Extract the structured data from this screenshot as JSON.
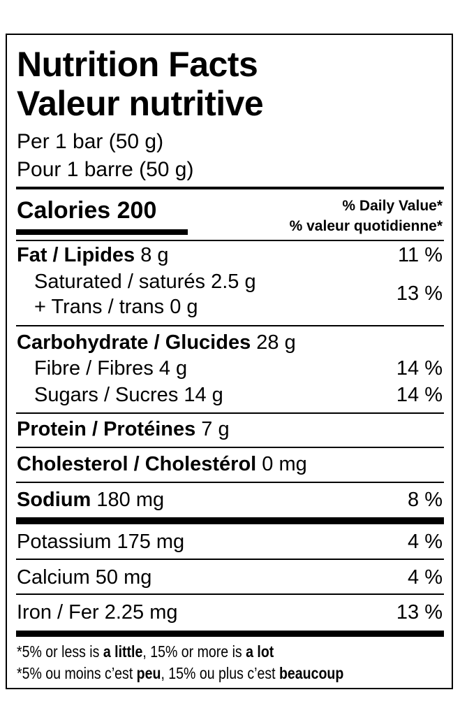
{
  "title": [
    "Nutrition Facts",
    "Valeur nutritive"
  ],
  "serving": [
    "Per 1 bar (50 g)",
    "Pour 1 barre (50 g)"
  ],
  "calories": "Calories 200",
  "daily_value_header": [
    "% Daily Value*",
    "% valeur quotidienne*"
  ],
  "fat": {
    "name": "Fat / Lipides",
    "amount": "8 g",
    "dv": "11 %"
  },
  "saturated": {
    "name": "Saturated / saturés 2.5 g",
    "trans": "+ Trans / trans 0 g",
    "dv": "13 %"
  },
  "carbohydrate": {
    "name": "Carbohydrate / Glucides",
    "amount": "28 g"
  },
  "fibre": {
    "name": "Fibre / Fibres 4 g",
    "dv": "14 %"
  },
  "sugars": {
    "name": "Sugars / Sucres 14 g",
    "dv": "14 %"
  },
  "protein": {
    "name": "Protein / Protéines",
    "amount": "7 g"
  },
  "cholesterol": {
    "name": "Cholesterol / Cholestérol",
    "amount": "0 mg"
  },
  "sodium": {
    "name": "Sodium",
    "amount": "180 mg",
    "dv": "8 %"
  },
  "potassium": {
    "name": "Potassium 175 mg",
    "dv": "4 %"
  },
  "calcium": {
    "name": "Calcium 50 mg",
    "dv": "4 %"
  },
  "iron": {
    "name": "Iron / Fer 2.25 mg",
    "dv": "13 %"
  },
  "footnote": [
    [
      "*5% or less is ",
      "a little",
      ", 15% or more is ",
      "a lot"
    ],
    [
      "*5% ou moins c’est ",
      "peu",
      ", 15% ou plus c’est ",
      "beaucoup"
    ]
  ]
}
